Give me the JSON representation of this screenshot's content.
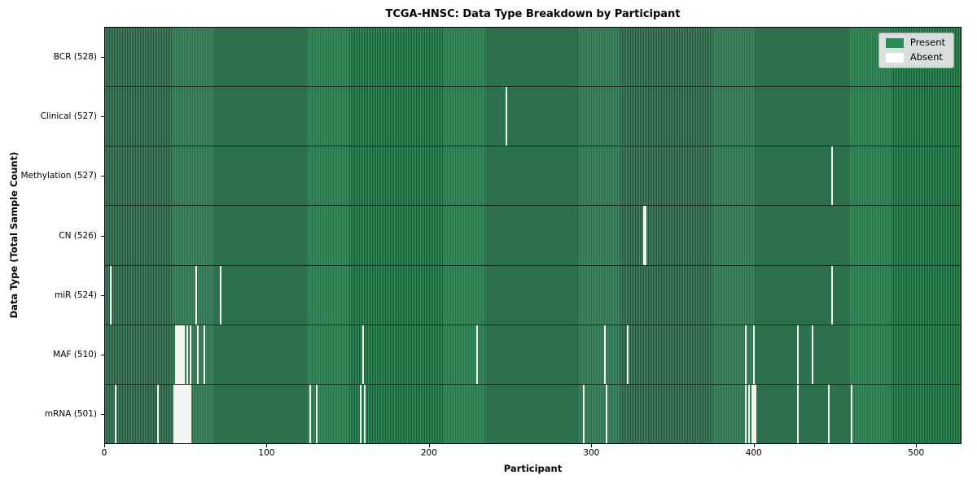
{
  "title": "TCGA-HNSC: Data Type Breakdown by Participant",
  "chart_data": {
    "type": "heatmap",
    "title": "TCGA-HNSC: Data Type Breakdown by Participant",
    "xlabel": "Participant",
    "ylabel": "Data Type (Total Sample Count)",
    "xlim": [
      0,
      528
    ],
    "x_ticks": [
      0,
      100,
      200,
      300,
      400,
      500
    ],
    "n_participants": 528,
    "grid": false,
    "legend": {
      "position": "upper right",
      "entries": [
        {
          "label": "Present",
          "color": "#2e8b57"
        },
        {
          "label": "Absent",
          "color": "#ffffff"
        }
      ]
    },
    "colors": {
      "present": "#2e8b57",
      "present_stripe_light": "#3a8b5e",
      "present_stripe_dark": "#20573a",
      "absent": "#f4f4f1",
      "row_divider": "#132c1c",
      "axis": "#000000"
    },
    "rows": [
      {
        "label": "BCR (528)",
        "name": "BCR",
        "total": 528,
        "absent_participants": []
      },
      {
        "label": "Clinical (527)",
        "name": "Clinical",
        "total": 527,
        "absent_participants": [
          247
        ]
      },
      {
        "label": "Methylation (527)",
        "name": "Methylation",
        "total": 527,
        "absent_participants": [
          448
        ]
      },
      {
        "label": "CN (526)",
        "name": "CN",
        "total": 526,
        "absent_participants": [
          332,
          333
        ]
      },
      {
        "label": "miR (524)",
        "name": "miR",
        "total": 524,
        "absent_participants": [
          3,
          56,
          71,
          448
        ]
      },
      {
        "label": "MAF (510)",
        "name": "MAF",
        "total": 510,
        "absent_participants": [
          43,
          44,
          45,
          46,
          47,
          48,
          50,
          52,
          57,
          61,
          159,
          229,
          308,
          322,
          395,
          400,
          427,
          436
        ]
      },
      {
        "label": "mRNA (501)",
        "name": "mRNA",
        "total": 501,
        "absent_participants": [
          6,
          32,
          42,
          43,
          44,
          45,
          46,
          47,
          48,
          49,
          50,
          51,
          52,
          126,
          130,
          157,
          160,
          295,
          309,
          395,
          397,
          399,
          400,
          401,
          427,
          446,
          460
        ]
      }
    ]
  }
}
